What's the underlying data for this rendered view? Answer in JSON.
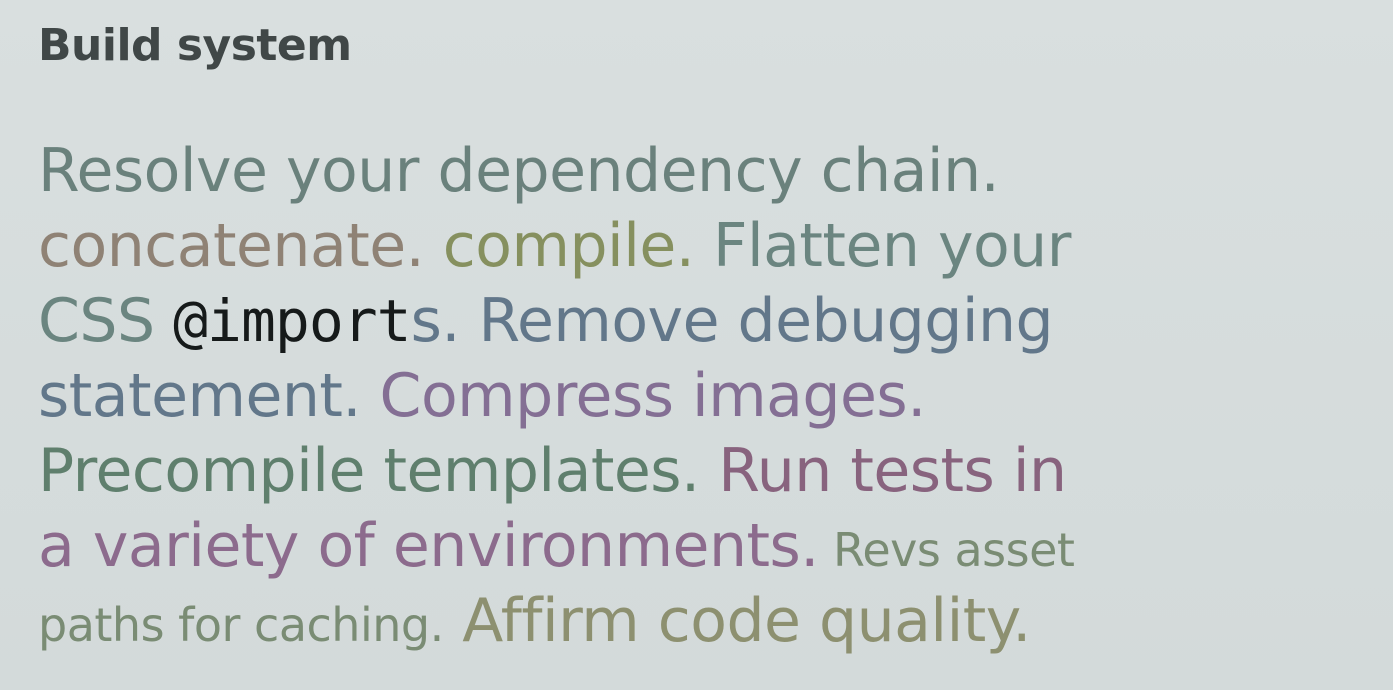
{
  "slide": {
    "title": "Build system",
    "lines": [
      {
        "segments": [
          {
            "text": "Resolve your dependency chain.",
            "color": "#6a817c"
          }
        ]
      },
      {
        "segments": [
          {
            "text": "concatenate.",
            "color": "#8f8275"
          },
          {
            "text": " compile.",
            "color": "#86905f"
          },
          {
            "text": " Flatten your",
            "color": "#6b8580"
          }
        ]
      },
      {
        "segments": [
          {
            "text": "CSS ",
            "color": "#6b8580"
          },
          {
            "text": "@import",
            "color": "#161a1a",
            "style": "code"
          },
          {
            "text": "s.",
            "color": "#62778a"
          },
          {
            "text": " Remove debugging",
            "color": "#62778a"
          }
        ]
      },
      {
        "segments": [
          {
            "text": "statement.",
            "color": "#62778a"
          },
          {
            "text": " Compress images.",
            "color": "#846f94"
          }
        ]
      },
      {
        "segments": [
          {
            "text": "Precompile templates.",
            "color": "#5f7f6d"
          },
          {
            "text": " Run tests in",
            "color": "#88637e"
          }
        ]
      },
      {
        "segments": [
          {
            "text": "a variety of environments.",
            "color": "#8c6b8d"
          },
          {
            "text": " Revs asset",
            "color": "#7a8c74",
            "style": "sm"
          }
        ]
      },
      {
        "segments": [
          {
            "text": "paths for caching.",
            "color": "#7a8c74",
            "style": "sm"
          },
          {
            "text": " Affirm code quality.",
            "color": "#8d9070"
          }
        ]
      }
    ]
  }
}
